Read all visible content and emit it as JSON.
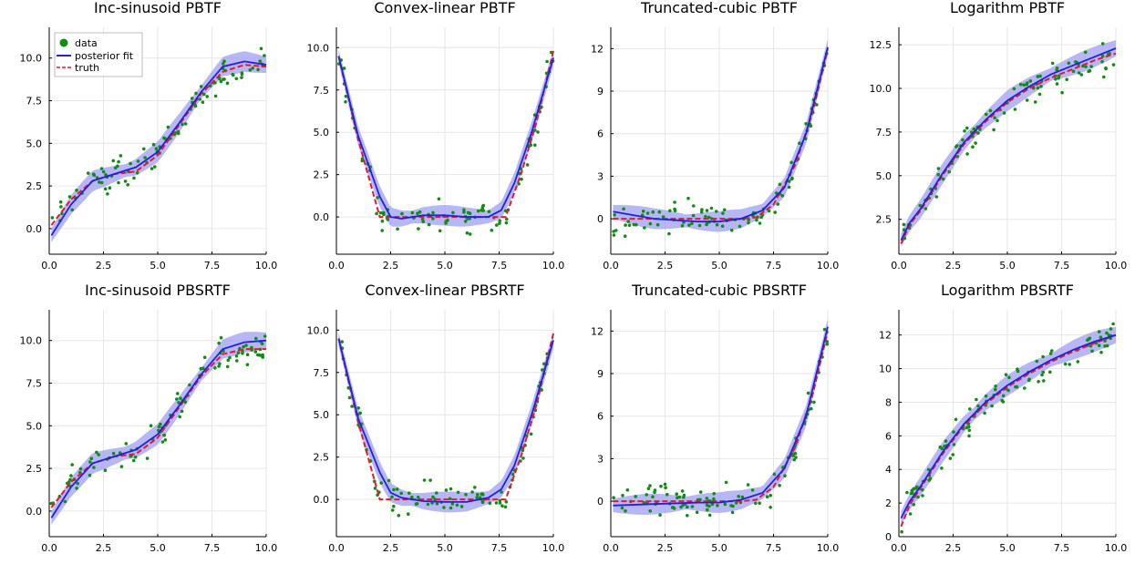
{
  "colors": {
    "data": "#138c13",
    "fit": "#1f1fe6",
    "band": "#9f9ff2",
    "truth": "#e6182b"
  },
  "legend": {
    "data": "data",
    "fit": "posterior fit",
    "truth": "truth",
    "placement": "top-left"
  },
  "chart_data": [
    {
      "type": "scatter",
      "title": "Inc-sinusoid PBTF",
      "xlim": [
        0,
        10
      ],
      "ylim": [
        -1.5,
        11.8
      ],
      "xticks": [
        "0.0",
        "2.5",
        "5.0",
        "7.5",
        "10.0"
      ],
      "yticks": [
        "0.0",
        "2.5",
        "5.0",
        "7.5",
        "10.0"
      ],
      "truth": [
        [
          0.1,
          0.2
        ],
        [
          1,
          1.7
        ],
        [
          2,
          2.8
        ],
        [
          3,
          3.2
        ],
        [
          4,
          3.35
        ],
        [
          5,
          4.3
        ],
        [
          6,
          6.1
        ],
        [
          7,
          7.9
        ],
        [
          8,
          9.2
        ],
        [
          9,
          9.6
        ],
        [
          10,
          9.5
        ]
      ],
      "fit": [
        [
          0.1,
          -0.4
        ],
        [
          1,
          1.4
        ],
        [
          2,
          2.8
        ],
        [
          3,
          3.2
        ],
        [
          4,
          3.6
        ],
        [
          5,
          4.5
        ],
        [
          6,
          6.2
        ],
        [
          7,
          8.0
        ],
        [
          8,
          9.5
        ],
        [
          9,
          9.8
        ],
        [
          10,
          9.6
        ]
      ]
    },
    {
      "type": "scatter",
      "title": "Convex-linear PBTF",
      "xlim": [
        0,
        10
      ],
      "ylim": [
        -2.2,
        11.2
      ],
      "xticks": [
        "0.0",
        "2.5",
        "5.0",
        "7.5",
        "10.0"
      ],
      "yticks": [
        "0.0",
        "2.5",
        "5.0",
        "7.5",
        "10.0"
      ],
      "truth": [
        [
          0.1,
          9.5
        ],
        [
          1,
          4.6
        ],
        [
          2,
          0.0
        ],
        [
          3,
          0.0
        ],
        [
          4,
          0.0
        ],
        [
          5,
          0.0
        ],
        [
          6,
          0.0
        ],
        [
          7,
          0.0
        ],
        [
          7.8,
          0.0
        ],
        [
          8.5,
          2.5
        ],
        [
          9.2,
          5.5
        ],
        [
          10,
          9.8
        ]
      ],
      "fit": [
        [
          0.1,
          9.5
        ],
        [
          1,
          4.8
        ],
        [
          2,
          1.2
        ],
        [
          2.5,
          0.0
        ],
        [
          3,
          -0.1
        ],
        [
          4,
          0.1
        ],
        [
          5,
          0.1
        ],
        [
          6,
          0.0
        ],
        [
          7,
          0.0
        ],
        [
          7.6,
          0.4
        ],
        [
          8.2,
          2.0
        ],
        [
          9,
          5.0
        ],
        [
          10,
          9.4
        ]
      ]
    },
    {
      "type": "scatter",
      "title": "Truncated-cubic PBTF",
      "xlim": [
        0,
        10
      ],
      "ylim": [
        -2.5,
        13.5
      ],
      "xticks": [
        "0.0",
        "2.5",
        "5.0",
        "7.5",
        "10.0"
      ],
      "yticks": [
        "0",
        "3",
        "6",
        "9",
        "12"
      ],
      "truth": [
        [
          0.1,
          0.0
        ],
        [
          2,
          0.0
        ],
        [
          4,
          0.0
        ],
        [
          6,
          0.0
        ],
        [
          6.7,
          0.1
        ],
        [
          7.5,
          1.0
        ],
        [
          8.5,
          3.8
        ],
        [
          9.3,
          7.5
        ],
        [
          10,
          12.0
        ]
      ],
      "fit": [
        [
          0.1,
          0.5
        ],
        [
          2,
          0.0
        ],
        [
          4,
          -0.2
        ],
        [
          5,
          -0.2
        ],
        [
          6,
          0.0
        ],
        [
          7,
          0.6
        ],
        [
          8,
          2.2
        ],
        [
          9,
          6.0
        ],
        [
          10,
          12.1
        ]
      ]
    },
    {
      "type": "scatter",
      "title": "Logarithm PBTF",
      "xlim": [
        0,
        10
      ],
      "ylim": [
        0.5,
        13.5
      ],
      "xticks": [
        "0.0",
        "2.5",
        "5.0",
        "7.5",
        "10.0"
      ],
      "yticks": [
        "2.5",
        "5.0",
        "7.5",
        "10.0",
        "12.5"
      ],
      "truth": [
        [
          0.1,
          1.1
        ],
        [
          0.5,
          2.2
        ],
        [
          1,
          3.0
        ],
        [
          2,
          5.0
        ],
        [
          3,
          6.8
        ],
        [
          4,
          8.1
        ],
        [
          5,
          9.2
        ],
        [
          6,
          10.0
        ],
        [
          7,
          10.6
        ],
        [
          8,
          11.1
        ],
        [
          9,
          11.6
        ],
        [
          10,
          12.0
        ]
      ],
      "fit": [
        [
          0.1,
          1.3
        ],
        [
          0.5,
          2.3
        ],
        [
          1,
          3.1
        ],
        [
          2,
          5.1
        ],
        [
          3,
          6.9
        ],
        [
          4,
          8.2
        ],
        [
          5,
          9.3
        ],
        [
          6,
          10.1
        ],
        [
          7,
          10.8
        ],
        [
          8,
          11.3
        ],
        [
          9,
          11.8
        ],
        [
          10,
          12.3
        ]
      ]
    },
    {
      "type": "scatter",
      "title": "Inc-sinusoid PBSRTF",
      "xlim": [
        0,
        10
      ],
      "ylim": [
        -1.5,
        11.8
      ],
      "xticks": [
        "0.0",
        "2.5",
        "5.0",
        "7.5",
        "10.0"
      ],
      "yticks": [
        "0.0",
        "2.5",
        "5.0",
        "7.5",
        "10.0"
      ],
      "truth": [
        [
          0.1,
          0.2
        ],
        [
          1,
          1.7
        ],
        [
          2,
          2.8
        ],
        [
          3,
          3.2
        ],
        [
          4,
          3.35
        ],
        [
          5,
          4.3
        ],
        [
          6,
          6.1
        ],
        [
          7,
          7.9
        ],
        [
          8,
          9.2
        ],
        [
          9,
          9.5
        ],
        [
          10,
          9.5
        ]
      ],
      "fit": [
        [
          0.1,
          -0.4
        ],
        [
          1,
          1.4
        ],
        [
          2,
          2.8
        ],
        [
          3,
          3.2
        ],
        [
          4,
          3.6
        ],
        [
          5,
          4.5
        ],
        [
          6,
          6.2
        ],
        [
          7,
          8.0
        ],
        [
          8,
          9.5
        ],
        [
          9,
          9.9
        ],
        [
          10,
          10.0
        ]
      ]
    },
    {
      "type": "scatter",
      "title": "Convex-linear PBSRTF",
      "xlim": [
        0,
        10
      ],
      "ylim": [
        -2.2,
        11.2
      ],
      "xticks": [
        "0.0",
        "2.5",
        "5.0",
        "7.5",
        "10.0"
      ],
      "yticks": [
        "0.0",
        "2.5",
        "5.0",
        "7.5",
        "10.0"
      ],
      "truth": [
        [
          0.1,
          9.5
        ],
        [
          1,
          4.6
        ],
        [
          2,
          0.0
        ],
        [
          3,
          0.0
        ],
        [
          4,
          0.0
        ],
        [
          5,
          0.0
        ],
        [
          6,
          0.0
        ],
        [
          7,
          0.0
        ],
        [
          7.8,
          0.0
        ],
        [
          8.5,
          2.5
        ],
        [
          9.2,
          5.5
        ],
        [
          10,
          9.8
        ]
      ],
      "fit": [
        [
          0.1,
          9.5
        ],
        [
          1,
          4.8
        ],
        [
          2,
          1.6
        ],
        [
          2.5,
          0.4
        ],
        [
          3,
          0.1
        ],
        [
          4,
          -0.1
        ],
        [
          5,
          -0.15
        ],
        [
          6,
          -0.15
        ],
        [
          7,
          0.1
        ],
        [
          7.6,
          0.6
        ],
        [
          8.2,
          2.0
        ],
        [
          9,
          5.0
        ],
        [
          10,
          9.4
        ]
      ]
    },
    {
      "type": "scatter",
      "title": "Truncated-cubic PBSRTF",
      "xlim": [
        0,
        10
      ],
      "ylim": [
        -2.5,
        13.5
      ],
      "xticks": [
        "0.0",
        "2.5",
        "5.0",
        "7.5",
        "10.0"
      ],
      "yticks": [
        "0",
        "3",
        "6",
        "9",
        "12"
      ],
      "truth": [
        [
          0.1,
          0.0
        ],
        [
          2,
          0.0
        ],
        [
          4,
          0.0
        ],
        [
          6,
          0.0
        ],
        [
          6.7,
          0.1
        ],
        [
          7.5,
          1.0
        ],
        [
          8.5,
          3.8
        ],
        [
          9.3,
          7.5
        ],
        [
          10,
          12.0
        ]
      ],
      "fit": [
        [
          0.1,
          -0.3
        ],
        [
          2,
          -0.2
        ],
        [
          4,
          -0.1
        ],
        [
          5,
          -0.1
        ],
        [
          6,
          0.1
        ],
        [
          7,
          0.6
        ],
        [
          8,
          2.3
        ],
        [
          9,
          6.0
        ],
        [
          10,
          12.3
        ]
      ]
    },
    {
      "type": "scatter",
      "title": "Logarithm PBSRTF",
      "xlim": [
        0,
        10
      ],
      "ylim": [
        0,
        13.5
      ],
      "xticks": [
        "0.0",
        "2.5",
        "5.0",
        "7.5",
        "10.0"
      ],
      "yticks": [
        "0",
        "2",
        "4",
        "6",
        "8",
        "10",
        "12"
      ],
      "truth": [
        [
          0.1,
          0.6
        ],
        [
          0.5,
          1.9
        ],
        [
          1,
          2.9
        ],
        [
          2,
          4.9
        ],
        [
          3,
          6.6
        ],
        [
          4,
          7.9
        ],
        [
          5,
          8.9
        ],
        [
          6,
          9.7
        ],
        [
          7,
          10.4
        ],
        [
          8,
          11.0
        ],
        [
          9,
          11.5
        ],
        [
          10,
          12.0
        ]
      ],
      "fit": [
        [
          0.1,
          1.1
        ],
        [
          0.5,
          2.1
        ],
        [
          1,
          3.0
        ],
        [
          2,
          5.0
        ],
        [
          3,
          6.7
        ],
        [
          4,
          8.0
        ],
        [
          5,
          9.0
        ],
        [
          6,
          9.8
        ],
        [
          7,
          10.5
        ],
        [
          8,
          11.1
        ],
        [
          9,
          11.6
        ],
        [
          10,
          12.0
        ]
      ]
    }
  ]
}
